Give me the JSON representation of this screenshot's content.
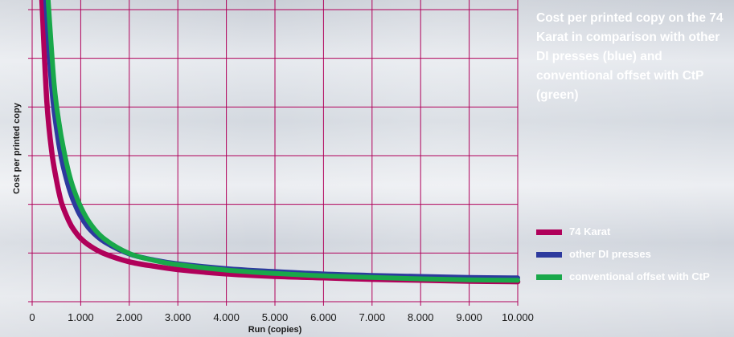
{
  "chart_data": {
    "type": "line",
    "title": "Cost per printed copy on the 74 Karat in comparison with other DI presses (blue) and conventional offset with CtP (green)",
    "xlabel": "Run (copies)",
    "ylabel": "Cost per printed copy",
    "xlim": [
      0,
      10000
    ],
    "ylim": [
      0,
      6
    ],
    "x_tick_labels": [
      "0",
      "1.000",
      "2.000",
      "3.000",
      "4.000",
      "5.000",
      "6.000",
      "7.000",
      "8.000",
      "9.000",
      "10.000"
    ],
    "y_tick_labels": [],
    "grid": true,
    "legend_position": "right",
    "series": [
      {
        "name": "74 Karat",
        "color": "#b0005a",
        "x": [
          200,
          300,
          400,
          500,
          600,
          700,
          800,
          900,
          1000,
          1200,
          1500,
          2000,
          2500,
          3000,
          4000,
          5000,
          6000,
          7000,
          8000,
          9000,
          10000
        ],
        "y": [
          6.2,
          4.15,
          3.1,
          2.5,
          2.05,
          1.78,
          1.57,
          1.42,
          1.3,
          1.14,
          0.98,
          0.82,
          0.73,
          0.66,
          0.57,
          0.52,
          0.49,
          0.46,
          0.44,
          0.42,
          0.41
        ]
      },
      {
        "name": "other DI presses",
        "color": "#2d3a9e",
        "x": [
          280,
          400,
          500,
          600,
          700,
          800,
          900,
          1000,
          1200,
          1500,
          2000,
          2500,
          3000,
          4000,
          5000,
          6000,
          7000,
          8000,
          9000,
          10000
        ],
        "y": [
          6.2,
          4.4,
          3.55,
          2.95,
          2.53,
          2.2,
          1.95,
          1.75,
          1.47,
          1.22,
          0.98,
          0.86,
          0.78,
          0.68,
          0.62,
          0.57,
          0.54,
          0.52,
          0.5,
          0.49
        ]
      },
      {
        "name": "conventional offset with CtP",
        "color": "#19a84a",
        "x": [
          330,
          450,
          550,
          650,
          750,
          850,
          1000,
          1200,
          1500,
          2000,
          2500,
          3000,
          4000,
          5000,
          6000,
          7000,
          8000,
          9000,
          10000
        ],
        "y": [
          6.2,
          4.5,
          3.7,
          3.12,
          2.67,
          2.33,
          1.95,
          1.6,
          1.28,
          0.99,
          0.85,
          0.76,
          0.65,
          0.58,
          0.53,
          0.5,
          0.47,
          0.45,
          0.44
        ]
      }
    ]
  }
}
